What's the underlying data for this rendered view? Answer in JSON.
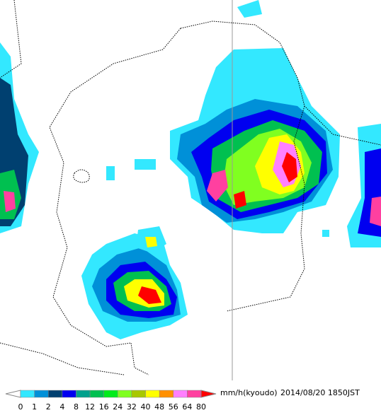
{
  "legend": {
    "ticks": [
      0,
      1,
      2,
      4,
      8,
      12,
      16,
      24,
      32,
      40,
      48,
      56,
      64,
      80
    ],
    "colors": [
      "#ffffff",
      "#33e8ff",
      "#0090d8",
      "#004070",
      "#0000f0",
      "#00a08c",
      "#00c050",
      "#00ec1a",
      "#80ff20",
      "#a8c800",
      "#ffff00",
      "#ff9000",
      "#ff80ff",
      "#ff40a0",
      "#ff0000"
    ],
    "unit": "mm/h(kyoudo)",
    "timestamp": "2014/08/20 1850JST"
  }
}
